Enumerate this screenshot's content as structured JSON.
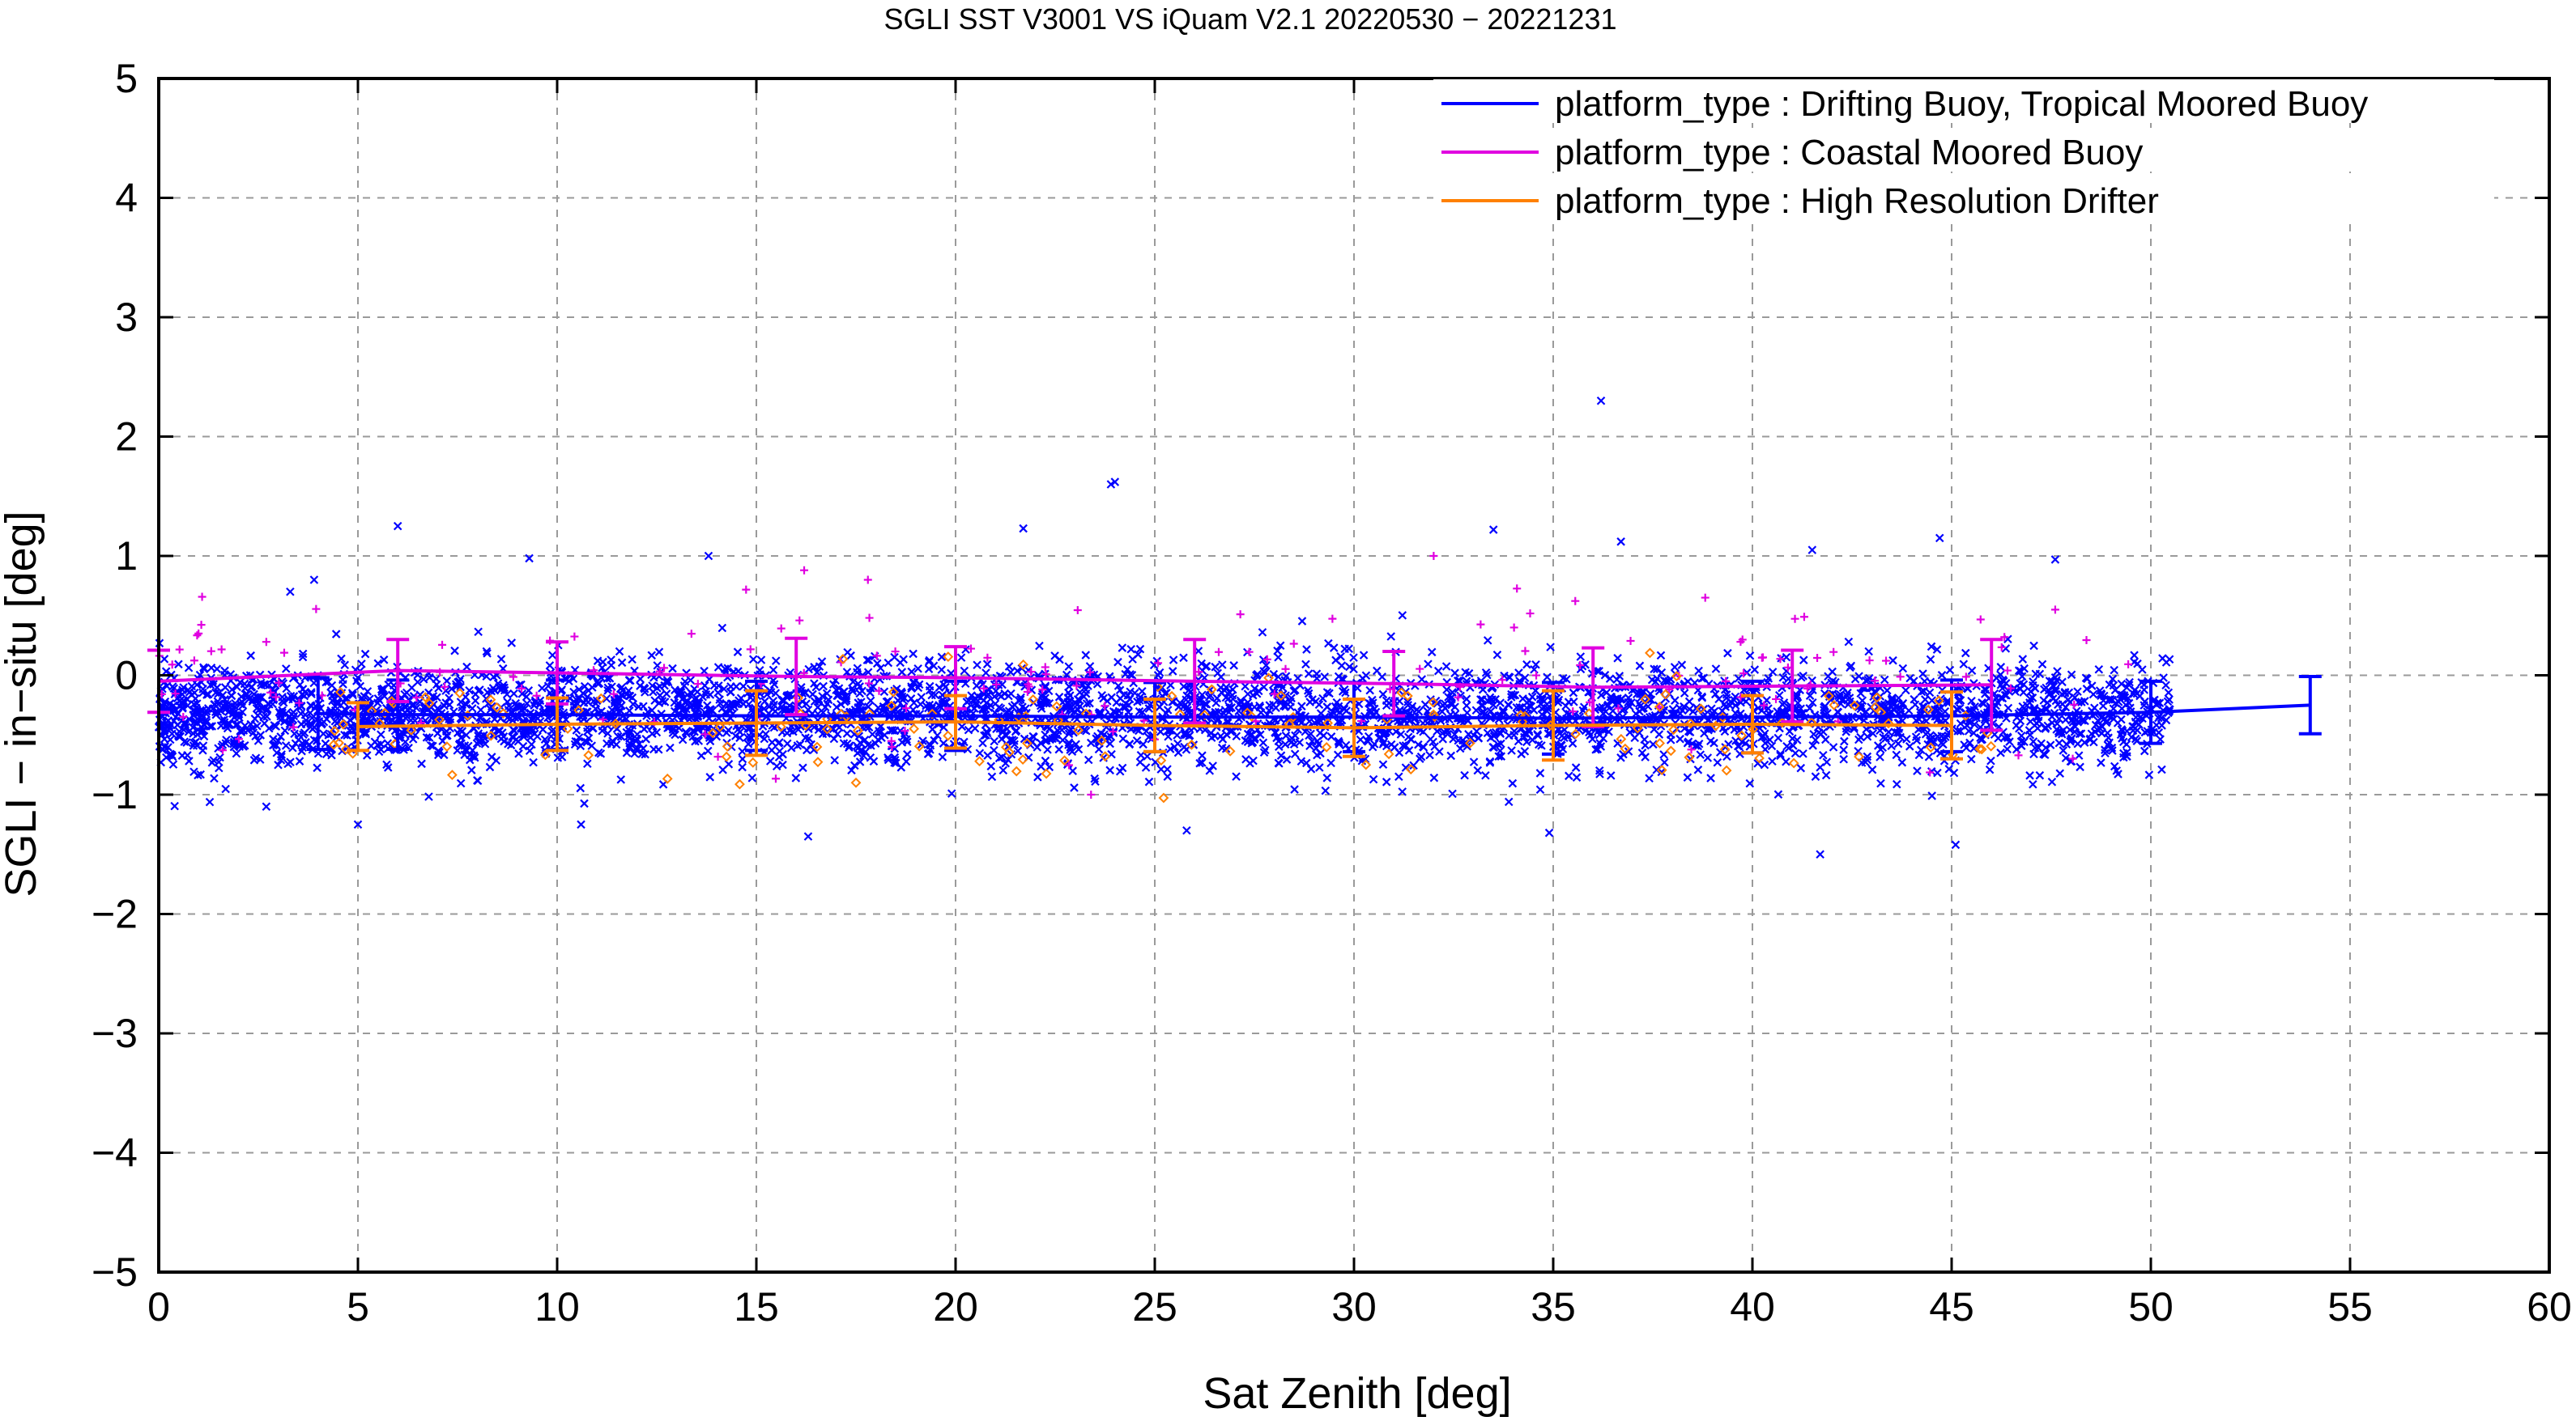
{
  "chart_data": {
    "type": "scatter",
    "title": "SGLI SST V3001 VS iQuam V2.1 20220530 − 20221231",
    "xlabel": "Sat Zenith [deg]",
    "ylabel": "SGLI − in−situ [deg]",
    "xlim": [
      0,
      60
    ],
    "ylim": [
      -5,
      5
    ],
    "x_ticks": [
      0,
      5,
      10,
      15,
      20,
      25,
      30,
      35,
      40,
      45,
      50,
      55,
      60
    ],
    "x_tick_labels": [
      "0",
      "5",
      "10",
      "15",
      "20",
      "25",
      "30",
      "35",
      "40",
      "45",
      "50",
      "55",
      "60"
    ],
    "y_ticks": [
      5,
      4,
      3,
      2,
      1,
      0,
      -1,
      -2,
      -3,
      -4,
      -5
    ],
    "y_tick_labels": [
      "5",
      "4",
      "3",
      "2",
      "1",
      "0",
      "−1",
      "−2",
      "−3",
      "−4",
      "−5"
    ],
    "grid": true,
    "legend_position": "top-right",
    "series": [
      {
        "name": "platform_type : Drifting Buoy, Tropical Moored Buoy",
        "color": "#0000ff",
        "marker": "x",
        "mean_line": {
          "x": [
            4,
            6,
            10,
            15,
            20,
            25,
            30,
            35,
            40,
            45,
            50,
            54
          ],
          "y": [
            -0.32,
            -0.33,
            -0.33,
            -0.34,
            -0.34,
            -0.35,
            -0.35,
            -0.36,
            -0.35,
            -0.34,
            -0.31,
            -0.25
          ],
          "err": [
            0.3,
            0.29,
            0.29,
            0.29,
            0.29,
            0.29,
            0.29,
            0.3,
            0.3,
            0.3,
            0.26,
            0.24
          ]
        },
        "scatter": {
          "x_range": [
            0,
            50.5
          ],
          "center": -0.33,
          "spread": 0.22,
          "count": 4200,
          "outliers": [
            [
              6,
              1.25
            ],
            [
              9.3,
              0.98
            ],
            [
              13.8,
              1.0
            ],
            [
              21.7,
              1.23
            ],
            [
              23.9,
              1.6
            ],
            [
              24,
              1.62
            ],
            [
              33.5,
              1.22
            ],
            [
              36.2,
              2.3
            ],
            [
              36.7,
              1.12
            ],
            [
              41.5,
              1.05
            ],
            [
              44.7,
              1.15
            ],
            [
              47.6,
              0.97
            ],
            [
              5,
              -1.25
            ],
            [
              10.6,
              -1.25
            ],
            [
              16.3,
              -1.35
            ],
            [
              25.8,
              -1.3
            ],
            [
              34.9,
              -1.32
            ],
            [
              41.7,
              -1.5
            ],
            [
              45.1,
              -1.42
            ],
            [
              2.7,
              -1.1
            ],
            [
              3.3,
              0.7
            ],
            [
              3.9,
              0.8
            ]
          ]
        }
      },
      {
        "name": "platform_type : Coastal Moored Buoy",
        "color": "#e000e0",
        "marker": "+",
        "mean_line": {
          "x": [
            0,
            6,
            10,
            16,
            20,
            26,
            31,
            36,
            41,
            46
          ],
          "y": [
            -0.05,
            0.04,
            0.02,
            -0.01,
            -0.02,
            -0.05,
            -0.07,
            -0.1,
            -0.09,
            -0.08
          ],
          "err": [
            0.26,
            0.26,
            0.26,
            0.32,
            0.26,
            0.35,
            0.27,
            0.33,
            0.3,
            0.38
          ]
        },
        "scatter": {
          "x_range": [
            0,
            50
          ],
          "center": -0.05,
          "spread": 0.3,
          "count": 150,
          "outliers": [
            [
              16.2,
              0.88
            ],
            [
              17.8,
              0.8
            ],
            [
              32,
              1.0
            ],
            [
              41.3,
              0.49
            ],
            [
              47.6,
              0.55
            ],
            [
              1,
              0.35
            ],
            [
              2.7,
              0.28
            ],
            [
              23.4,
              -1.0
            ]
          ]
        }
      },
      {
        "name": "platform_type : High Resolution Drifter",
        "color": "#ff8000",
        "marker": "diamond",
        "mean_line": {
          "x": [
            5,
            10,
            15,
            20,
            25,
            30,
            35,
            40,
            45
          ],
          "y": [
            -0.43,
            -0.41,
            -0.4,
            -0.39,
            -0.42,
            -0.44,
            -0.42,
            -0.41,
            -0.42
          ],
          "err": [
            0.2,
            0.22,
            0.27,
            0.22,
            0.22,
            0.24,
            0.29,
            0.24,
            0.28
          ]
        },
        "scatter": {
          "x_range": [
            4,
            46
          ],
          "center": -0.42,
          "spread": 0.22,
          "count": 150,
          "outliers": [
            [
              17.5,
              -0.9
            ],
            [
              20.6,
              -0.72
            ],
            [
              30.3,
              -0.75
            ]
          ]
        }
      }
    ]
  }
}
